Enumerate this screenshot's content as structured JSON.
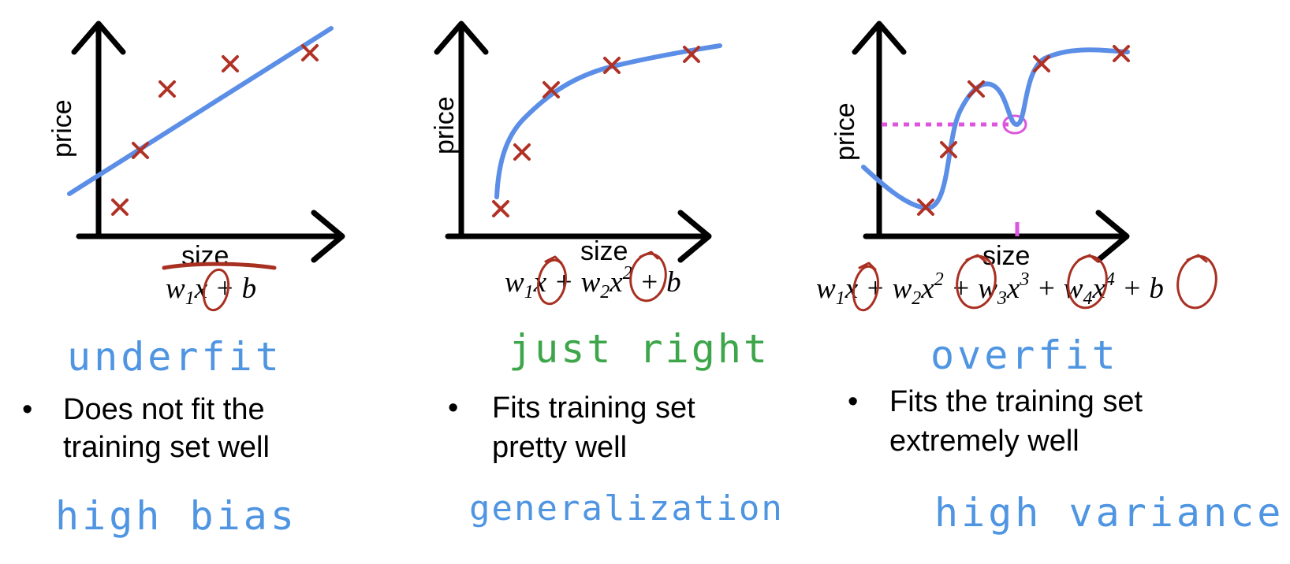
{
  "panels": [
    {
      "id": "underfit",
      "ylabel": "price",
      "xlabel": "size",
      "formula": {
        "w1": "w",
        "s1": "1",
        "x1": "x",
        "plus_b": " + b"
      },
      "verdict": "underfit",
      "bullet": "•",
      "desc_line1": "Does not fit the",
      "desc_line2": "training set well",
      "diagnosis": "high bias",
      "colors": {
        "verdict": "#4f95e2",
        "diagnosis": "#4f95e2"
      }
    },
    {
      "id": "just-right",
      "ylabel": "price",
      "xlabel": "size",
      "formula": {
        "w1": "w",
        "s1": "1",
        "x1": "x",
        "plus1": " + ",
        "w2": "w",
        "s2": "2",
        "x2": "x",
        "p2": "2",
        "plus_b": " + b"
      },
      "verdict": "just right",
      "bullet": "•",
      "desc_line1": "Fits training set",
      "desc_line2": "pretty well",
      "diagnosis": "generalization",
      "colors": {
        "verdict": "#3ea64a",
        "diagnosis": "#4f95e2"
      }
    },
    {
      "id": "overfit",
      "ylabel": "price",
      "xlabel": "size",
      "formula": {
        "w1": "w",
        "s1": "1",
        "x1": "x",
        "plus1": " + ",
        "w2": "w",
        "s2": "2",
        "x2": "x",
        "p2": "2",
        "plus2": " + ",
        "w3": "w",
        "s3": "3",
        "x3": "x",
        "p3": "3",
        "plus3": " + ",
        "w4": "w",
        "s4": "4",
        "x4": "x",
        "p4": "4",
        "plus_b": " + b"
      },
      "verdict": "overfit",
      "bullet": "•",
      "desc_line1": "Fits the training set",
      "desc_line2": "extremely well",
      "diagnosis": "high variance",
      "colors": {
        "verdict": "#4f95e2",
        "diagnosis": "#4f95e2"
      }
    }
  ],
  "colors": {
    "axis": "#000000",
    "fit_curve": "#5b8ee6",
    "data_marks": "#b03226",
    "annotation_ink": "#a83022",
    "highlight": "#dd55dd"
  }
}
